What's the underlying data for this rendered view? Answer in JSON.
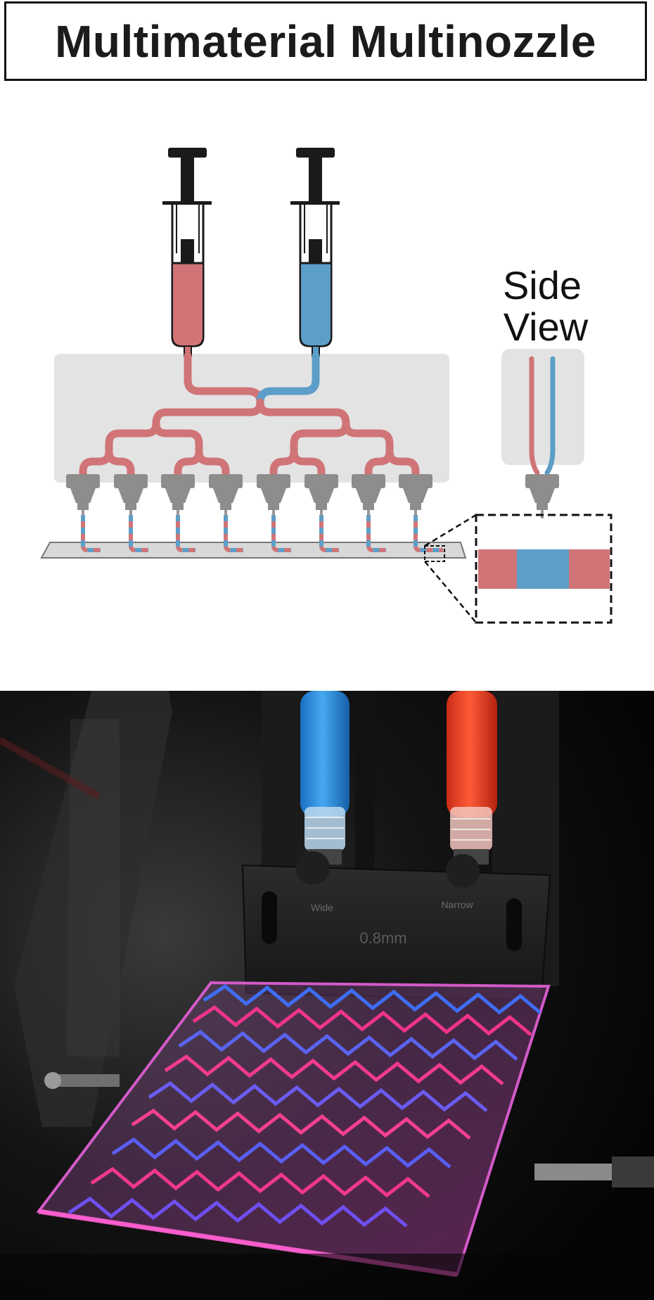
{
  "title": "Multimaterial Multinozzle",
  "side_view": {
    "line1": "Side",
    "line2": "View"
  },
  "colors": {
    "ink_red": "#d07477",
    "ink_blue": "#5c9ec8",
    "manifold": "#e3e3e3",
    "nozzle": "#8f8c8c",
    "syringe_dark": "#1a1a1a"
  },
  "photo_labels": {
    "left_port": "Wide",
    "right_port": "Narrow",
    "nozzle_size": "0.8mm"
  }
}
